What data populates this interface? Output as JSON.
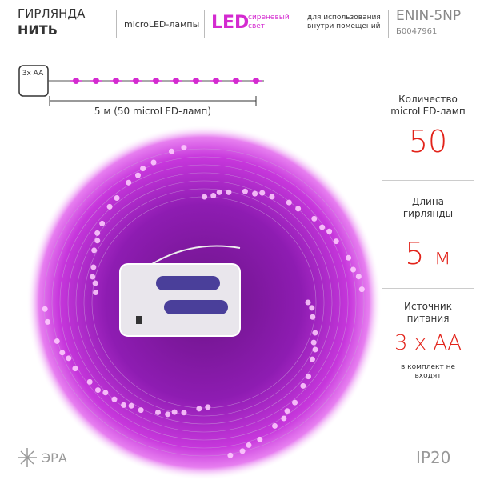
{
  "header": {
    "title": "ГИРЛЯНДА",
    "subtitle": "НИТЬ",
    "lamp_type": "microLED-лампы",
    "led": "LED",
    "light_color": "сиреневый свет",
    "usage": "для использования внутри помещений",
    "model": "ENIN-5NP",
    "code": "Б0047961"
  },
  "diagram": {
    "battery": "3x AA",
    "length_label": "5 м (50 microLED-ламп)"
  },
  "specs": [
    {
      "label": "Количество microLED-ламп",
      "value": "50"
    },
    {
      "label": "Длина гирлянды",
      "value": "5",
      "unit": "м"
    },
    {
      "label": "Источник питания",
      "value": "3 х АА",
      "note": "в комплект не входят"
    }
  ],
  "footer": {
    "brand": "ЭРА",
    "protection": "IP20"
  }
}
